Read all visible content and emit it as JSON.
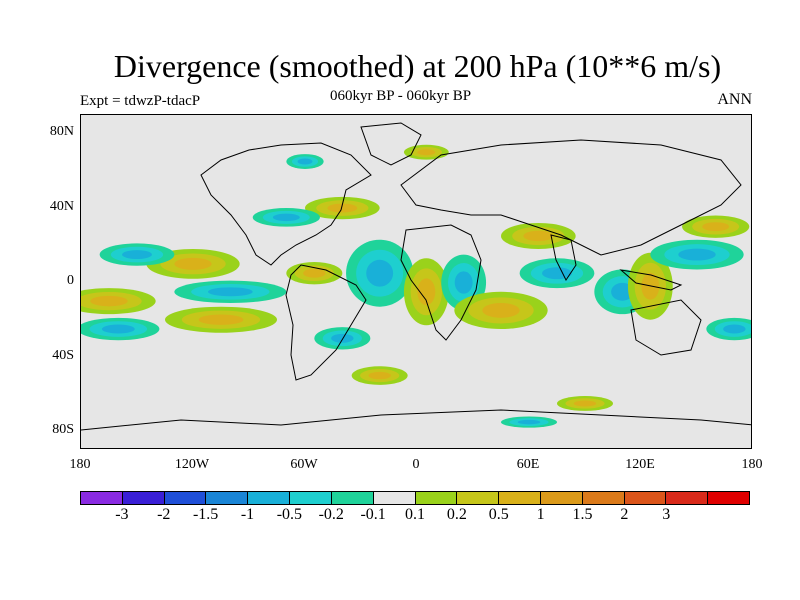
{
  "title": "Divergence (smoothed) at 200 hPa (10**6 m/s)",
  "experiment": "Expt = tdwzP-tdacP",
  "period": "060kyr BP - 060kyr BP",
  "season": "ANN",
  "map": {
    "projection": "cylindrical-equidistant",
    "background_color": "#e6e6e6",
    "lat_ticks": [
      "80N",
      "40N",
      "0",
      "40S",
      "80S"
    ],
    "lon_ticks": [
      "180",
      "120W",
      "60W",
      "0",
      "60E",
      "120E",
      "180"
    ]
  },
  "colorbar": {
    "colors": [
      "#8a2be2",
      "#3a1fd6",
      "#1f4fd8",
      "#1a85d6",
      "#19b0d8",
      "#1ecfcf",
      "#1fd39a",
      "#e6e6e6",
      "#9ad21b",
      "#c6c61a",
      "#d9b11a",
      "#db9a1a",
      "#db7a1a",
      "#db551a",
      "#d92a1a",
      "#e00000"
    ],
    "labels": [
      "-3",
      "-2",
      "-1.5",
      "-1",
      "-0.5",
      "-0.2",
      "-0.1",
      "0.1",
      "0.2",
      "0.5",
      "1",
      "1.5",
      "2",
      "3"
    ]
  },
  "field_patches": [
    {
      "level": "pos",
      "lon": -120,
      "lat": 10,
      "rx": 25,
      "ry": 8
    },
    {
      "level": "neg",
      "lon": -150,
      "lat": 15,
      "rx": 20,
      "ry": 6
    },
    {
      "level": "pos",
      "lon": -165,
      "lat": -10,
      "rx": 25,
      "ry": 7
    },
    {
      "level": "neg",
      "lon": -160,
      "lat": -25,
      "rx": 22,
      "ry": 6
    },
    {
      "level": "pos",
      "lon": -105,
      "lat": -20,
      "rx": 30,
      "ry": 7
    },
    {
      "level": "neg",
      "lon": -100,
      "lat": -5,
      "rx": 30,
      "ry": 6
    },
    {
      "level": "pos",
      "lon": -55,
      "lat": 5,
      "rx": 15,
      "ry": 6
    },
    {
      "level": "neg",
      "lon": -20,
      "lat": 5,
      "rx": 18,
      "ry": 18
    },
    {
      "level": "pos",
      "lon": 5,
      "lat": -5,
      "rx": 12,
      "ry": 18
    },
    {
      "level": "neg",
      "lon": 25,
      "lat": 0,
      "rx": 12,
      "ry": 15
    },
    {
      "level": "pos",
      "lon": 45,
      "lat": -15,
      "rx": 25,
      "ry": 10
    },
    {
      "level": "neg",
      "lon": 75,
      "lat": 5,
      "rx": 20,
      "ry": 8
    },
    {
      "level": "pos",
      "lon": 65,
      "lat": 25,
      "rx": 20,
      "ry": 7
    },
    {
      "level": "neg",
      "lon": 110,
      "lat": -5,
      "rx": 15,
      "ry": 12
    },
    {
      "level": "pos",
      "lon": 125,
      "lat": -2,
      "rx": 12,
      "ry": 18
    },
    {
      "level": "neg",
      "lon": 150,
      "lat": 15,
      "rx": 25,
      "ry": 8
    },
    {
      "level": "pos",
      "lon": 160,
      "lat": 30,
      "rx": 18,
      "ry": 6
    },
    {
      "level": "neg",
      "lon": 170,
      "lat": -25,
      "rx": 15,
      "ry": 6
    },
    {
      "level": "pos",
      "lon": -40,
      "lat": 40,
      "rx": 20,
      "ry": 6
    },
    {
      "level": "neg",
      "lon": -70,
      "lat": 35,
      "rx": 18,
      "ry": 5
    },
    {
      "level": "pos",
      "lon": 5,
      "lat": 70,
      "rx": 12,
      "ry": 4
    },
    {
      "level": "neg",
      "lon": -60,
      "lat": 65,
      "rx": 10,
      "ry": 4
    },
    {
      "level": "pos",
      "lon": 90,
      "lat": -65,
      "rx": 15,
      "ry": 4
    },
    {
      "level": "neg",
      "lon": 60,
      "lat": -75,
      "rx": 15,
      "ry": 3
    },
    {
      "level": "pos",
      "lon": -20,
      "lat": -50,
      "rx": 15,
      "ry": 5
    },
    {
      "level": "neg",
      "lon": -40,
      "lat": -30,
      "rx": 15,
      "ry": 6
    }
  ]
}
